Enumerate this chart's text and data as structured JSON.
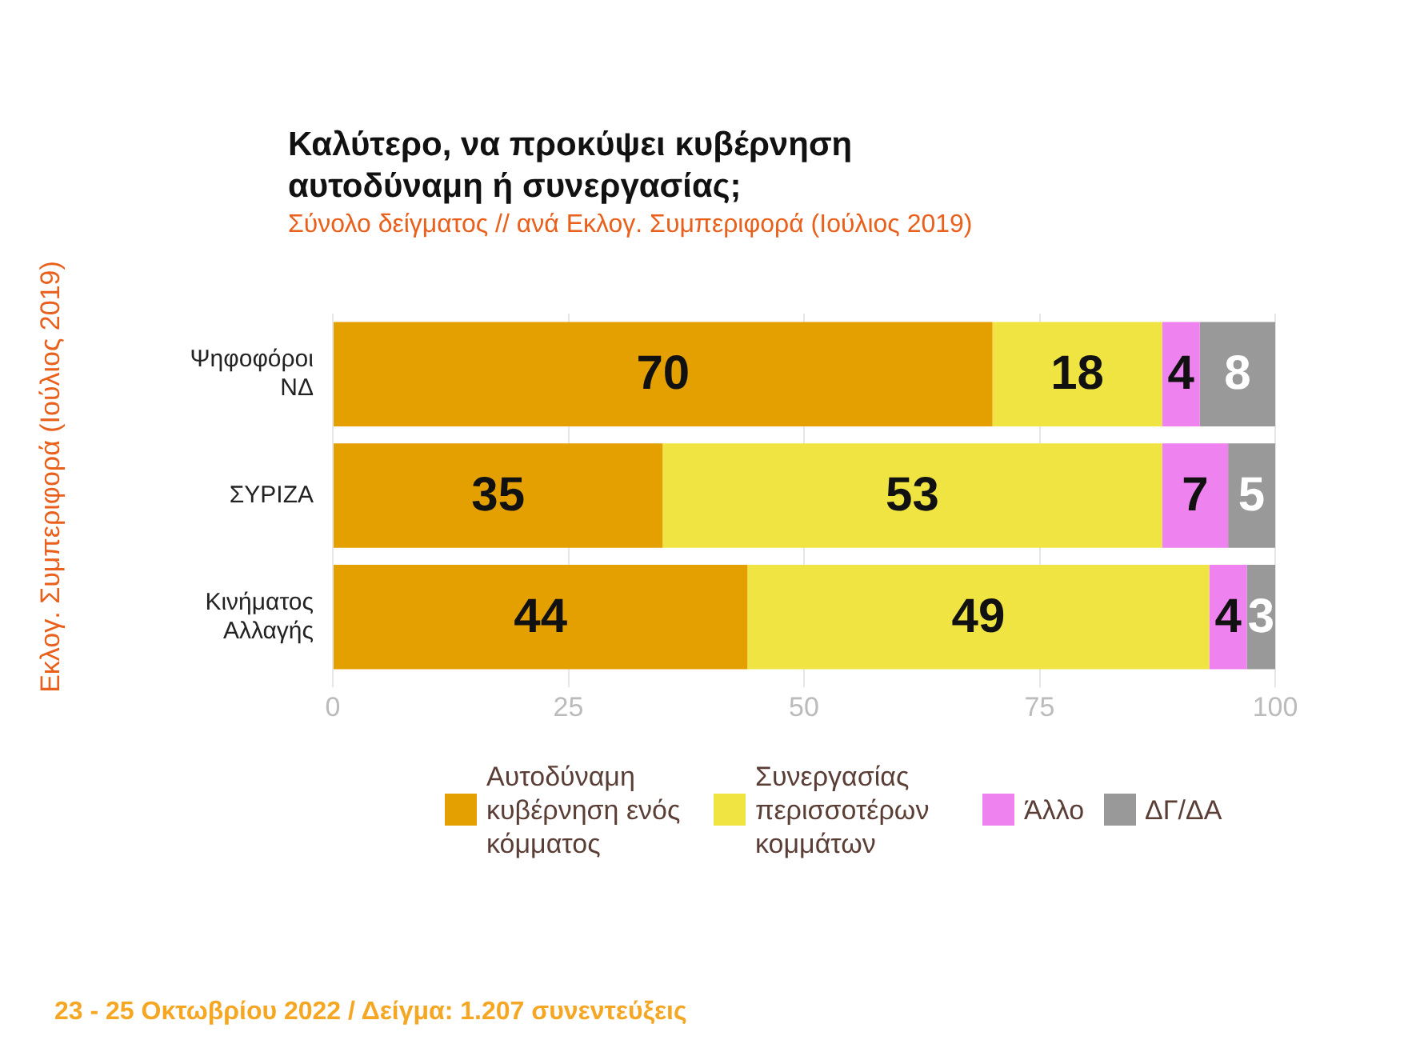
{
  "chart_data": {
    "type": "bar",
    "orientation": "horizontal",
    "stacked": true,
    "title": "Καλύτερο, να προκύψει κυβέρνηση αυτοδύναμη ή συνεργασίας;",
    "subtitle": "Σύνολο δείγματος // ανά Εκλογ. Συμπεριφορά (Ιούλιος 2019)",
    "ylabel": "Εκλογ. Συμπεριφορά (Ιούλιος 2019)",
    "categories": [
      "Ψηφοφόροι ΝΔ",
      "ΣΥΡΙΖΑ",
      "Κινήματος Αλλαγής"
    ],
    "series": [
      {
        "name": "Αυτοδύναμη κυβέρνηση ενός κόμματος",
        "color": "#e3a000",
        "values": [
          70,
          35,
          44
        ]
      },
      {
        "name": "Συνεργασίας περισσοτέρων κομμάτων",
        "color": "#f0e442",
        "values": [
          18,
          53,
          49
        ]
      },
      {
        "name": "Άλλο",
        "color": "#ee82ee",
        "values": [
          4,
          7,
          4
        ]
      },
      {
        "name": "ΔΓ/ΔΑ",
        "color": "#999999",
        "values": [
          8,
          5,
          3
        ]
      }
    ],
    "xlim": [
      0,
      100
    ],
    "xticks": [
      0,
      25,
      50,
      75,
      100
    ],
    "grid": "x",
    "legend": "bottom",
    "data_labels": true,
    "annotations": [
      "23 - 25 Οκτωβρίου 2022  /  Δείγμα:  1.207 συνεντεύξεις"
    ]
  }
}
